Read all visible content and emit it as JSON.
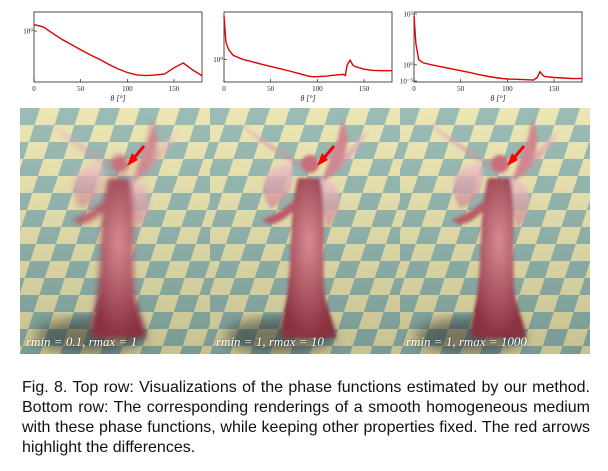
{
  "chart_data": [
    {
      "type": "line",
      "x": [
        0,
        10,
        20,
        30,
        40,
        50,
        60,
        70,
        80,
        90,
        100,
        110,
        120,
        130,
        140,
        150,
        160,
        170,
        180
      ],
      "y": [
        1.6,
        1.35,
        0.85,
        0.55,
        0.38,
        0.26,
        0.18,
        0.13,
        0.09,
        0.065,
        0.05,
        0.042,
        0.04,
        0.042,
        0.045,
        0.07,
        0.1,
        0.06,
        0.04
      ],
      "xticks": [
        "0",
        "50",
        "100",
        "150"
      ],
      "xlabel": "θ [°]",
      "yticks": [
        "10⁰"
      ],
      "xlim": [
        0,
        180
      ],
      "ylog": true,
      "color": "#e00000"
    },
    {
      "type": "line",
      "x": [
        0,
        2,
        5,
        10,
        20,
        30,
        40,
        50,
        60,
        70,
        80,
        90,
        95,
        100,
        110,
        120,
        128,
        130,
        132,
        135,
        138,
        140,
        150,
        160,
        170,
        180
      ],
      "y": [
        200,
        8,
        3.2,
        1.6,
        1.0,
        0.75,
        0.55,
        0.42,
        0.32,
        0.24,
        0.18,
        0.13,
        0.12,
        0.12,
        0.13,
        0.15,
        0.16,
        0.14,
        0.5,
        0.9,
        0.5,
        0.42,
        0.3,
        0.26,
        0.25,
        0.25
      ],
      "xticks": [
        "0",
        "50",
        "100",
        "150"
      ],
      "xlabel": "θ [°]",
      "yticks": [
        "10⁰"
      ],
      "xlim": [
        0,
        180
      ],
      "ylog": true,
      "color": "#e00000"
    },
    {
      "type": "line",
      "x": [
        0,
        2,
        5,
        10,
        20,
        30,
        40,
        50,
        60,
        70,
        80,
        90,
        100,
        110,
        120,
        128,
        132,
        135,
        138,
        140,
        150,
        160,
        170,
        180
      ],
      "y": [
        5000,
        40,
        2.5,
        1.4,
        0.95,
        0.7,
        0.5,
        0.36,
        0.26,
        0.18,
        0.13,
        0.1,
        0.085,
        0.08,
        0.075,
        0.07,
        0.11,
        0.3,
        0.16,
        0.13,
        0.11,
        0.1,
        0.09,
        0.09
      ],
      "xticks": [
        "0",
        "50",
        "100",
        "150"
      ],
      "xlabel": "θ [°]",
      "yticks": [
        "10⁵",
        "10⁰",
        "10⁻⁵"
      ],
      "xlim": [
        0,
        180
      ],
      "ylog": true,
      "color": "#e00000"
    }
  ],
  "renders": [
    {
      "label": "rmin = 0.1, rmax = 1"
    },
    {
      "label": "rmin = 1, rmax = 10"
    },
    {
      "label": "rmin = 1, rmax = 1000"
    }
  ],
  "caption": "Fig. 8.   Top row: Visualizations of the phase functions estimated by our method. Bottom row: The corresponding renderings of a smooth homogeneous medium with these phase functions, while keeping other properties fixed. The red arrows highlight the differences."
}
